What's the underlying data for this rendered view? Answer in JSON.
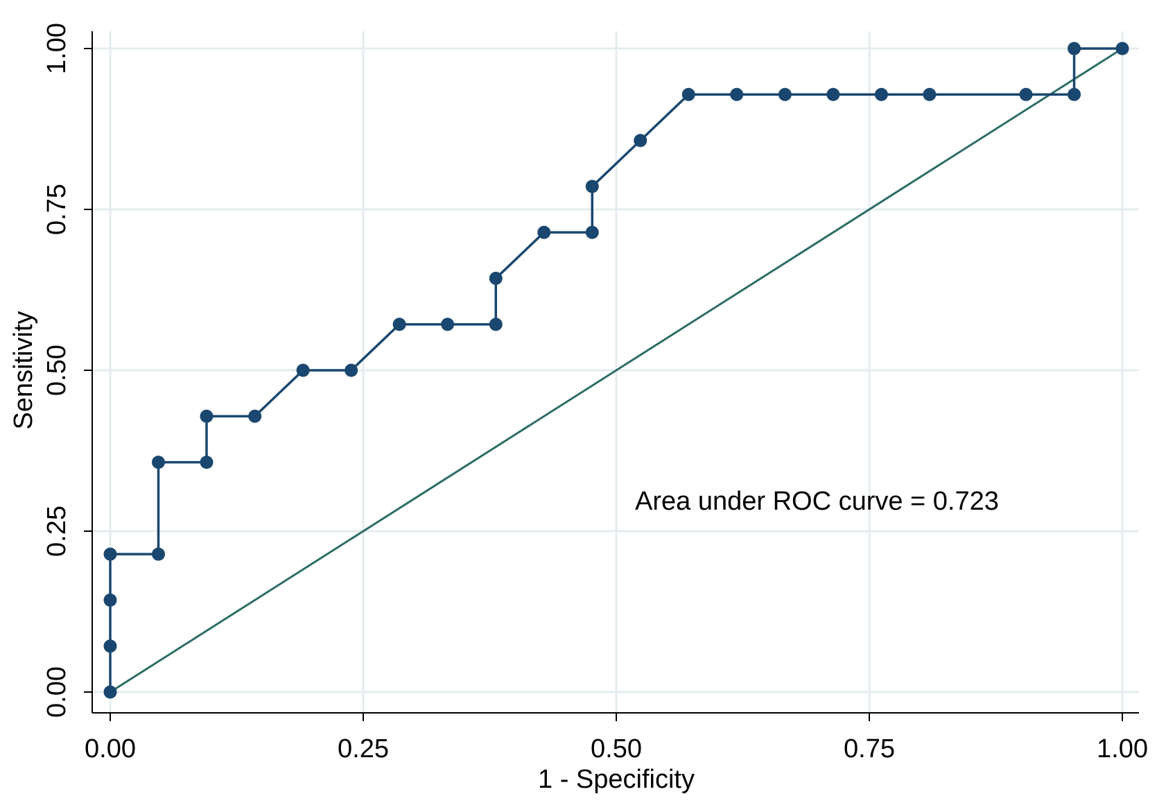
{
  "chart_data": {
    "type": "line",
    "xlabel": "1 - Specificity",
    "ylabel": "Sensitivity",
    "xlim": [
      0,
      1
    ],
    "ylim": [
      0,
      1
    ],
    "x_ticks": [
      "0.00",
      "0.25",
      "0.50",
      "0.75",
      "1.00"
    ],
    "y_ticks": [
      "0.00",
      "0.25",
      "0.50",
      "0.75",
      "1.00"
    ],
    "grid": true,
    "annotation": "Area under ROC curve = 0.723",
    "series": [
      {
        "x": [
          0,
          0,
          0,
          0,
          0.0476,
          0.0476,
          0.0952,
          0.0952,
          0.1429,
          0.1905,
          0.2381,
          0.2857,
          0.3333,
          0.381,
          0.381,
          0.4286,
          0.4762,
          0.4762,
          0.5238,
          0.5714,
          0.619,
          0.6667,
          0.7143,
          0.7619,
          0.8095,
          0.9048,
          0.9524,
          0.9524,
          1
        ],
        "y": [
          0,
          0.0714,
          0.1429,
          0.2143,
          0.2143,
          0.3571,
          0.3571,
          0.4286,
          0.4286,
          0.5,
          0.5,
          0.5714,
          0.5714,
          0.5714,
          0.6429,
          0.7143,
          0.7143,
          0.7857,
          0.8571,
          0.9286,
          0.9286,
          0.9286,
          0.9286,
          0.9286,
          0.9286,
          0.9286,
          0.9286,
          1,
          1
        ]
      },
      {
        "x": [
          0,
          1
        ],
        "y": [
          0,
          1
        ]
      }
    ],
    "colors": {
      "roc": "#1a476f",
      "reference": "#2d6d66",
      "grid": "#e4ecef"
    }
  }
}
